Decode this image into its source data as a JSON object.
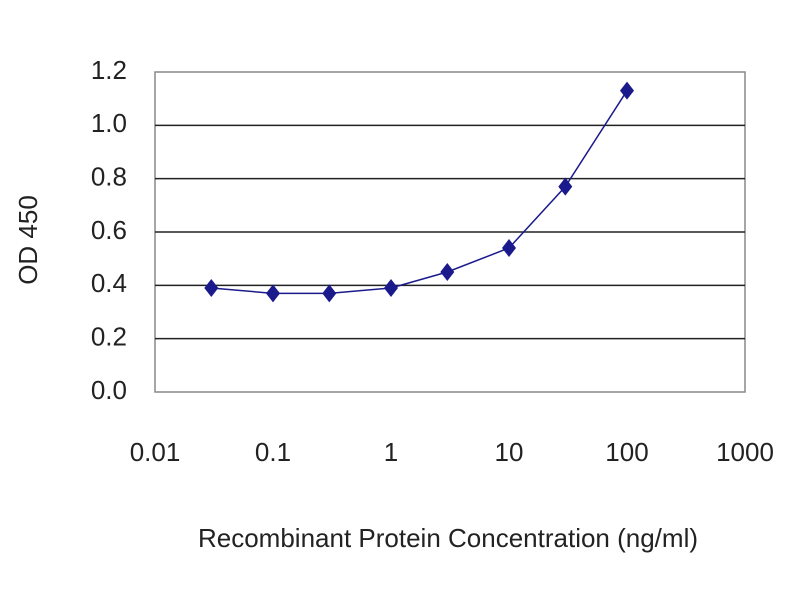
{
  "chart_data": {
    "type": "line",
    "x_label": "Recombinant Protein Concentration (ng/ml)",
    "y_label": "OD 450",
    "x": [
      0.03,
      0.1,
      0.3,
      1,
      3,
      10,
      30,
      100
    ],
    "series": [
      {
        "color": "#1a1a8c",
        "values": [
          0.39,
          0.37,
          0.37,
          0.39,
          0.45,
          0.54,
          0.77,
          1.13
        ]
      }
    ],
    "xscale": "log",
    "xlim": [
      0.01,
      1000
    ],
    "xticks": [
      0.01,
      0.1,
      1,
      10,
      100,
      1000
    ],
    "ylim": [
      0,
      1.2
    ],
    "yticks": [
      {
        "value": 0,
        "label": "0.0"
      },
      {
        "value": 0.2,
        "label": "0.2"
      },
      {
        "value": 0.4,
        "label": "0.4"
      },
      {
        "value": 0.6,
        "label": "0.6"
      },
      {
        "value": 0.8,
        "label": "0.8"
      },
      {
        "value": 1.0,
        "label": "1.0"
      },
      {
        "value": 1.2,
        "label": "1.2"
      }
    ],
    "grid": true
  }
}
